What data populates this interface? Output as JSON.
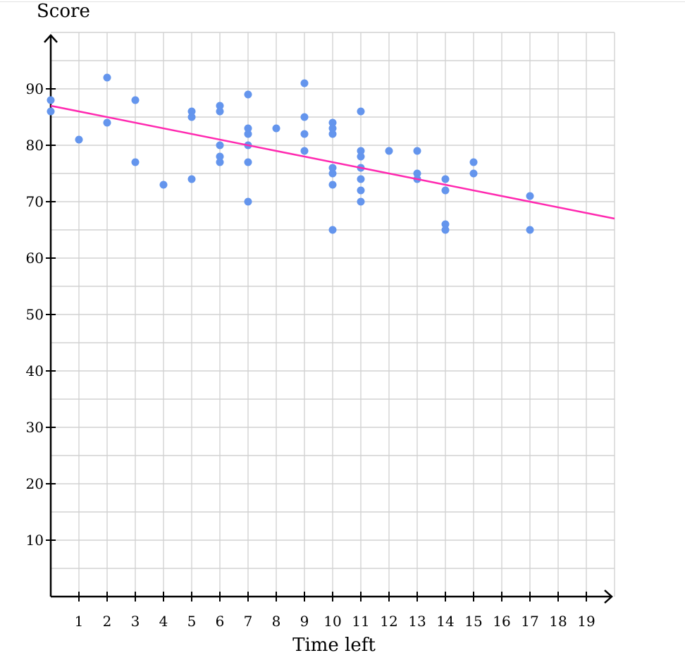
{
  "chart_data": {
    "type": "scatter",
    "title": "",
    "xlabel": "Time left",
    "ylabel": "Score",
    "xlim": [
      0,
      20
    ],
    "ylim": [
      0,
      100
    ],
    "x_ticks": [
      1,
      2,
      3,
      4,
      5,
      6,
      7,
      8,
      9,
      10,
      11,
      12,
      13,
      14,
      15,
      16,
      17,
      18,
      19
    ],
    "y_ticks": [
      10,
      20,
      30,
      40,
      50,
      60,
      70,
      80,
      90
    ],
    "grid": true,
    "point_color": "#6495ed",
    "line_color": "#ff29b0",
    "points": [
      [
        0,
        88
      ],
      [
        0,
        86
      ],
      [
        1,
        81
      ],
      [
        2,
        92
      ],
      [
        2,
        84
      ],
      [
        3,
        88
      ],
      [
        3,
        77
      ],
      [
        4,
        73
      ],
      [
        5,
        86
      ],
      [
        5,
        85
      ],
      [
        5,
        74
      ],
      [
        6,
        87
      ],
      [
        6,
        86
      ],
      [
        6,
        80
      ],
      [
        6,
        78
      ],
      [
        6,
        77
      ],
      [
        7,
        89
      ],
      [
        7,
        83
      ],
      [
        7,
        82
      ],
      [
        7,
        80
      ],
      [
        7,
        77
      ],
      [
        7,
        70
      ],
      [
        8,
        83
      ],
      [
        9,
        91
      ],
      [
        9,
        85
      ],
      [
        9,
        82
      ],
      [
        9,
        79
      ],
      [
        10,
        84
      ],
      [
        10,
        83
      ],
      [
        10,
        82
      ],
      [
        10,
        76
      ],
      [
        10,
        75
      ],
      [
        10,
        73
      ],
      [
        10,
        65
      ],
      [
        11,
        86
      ],
      [
        11,
        79
      ],
      [
        11,
        78
      ],
      [
        11,
        76
      ],
      [
        11,
        74
      ],
      [
        11,
        72
      ],
      [
        11,
        70
      ],
      [
        12,
        79
      ],
      [
        13,
        79
      ],
      [
        13,
        75
      ],
      [
        13,
        74
      ],
      [
        14,
        74
      ],
      [
        14,
        72
      ],
      [
        14,
        66
      ],
      [
        14,
        65
      ],
      [
        15,
        77
      ],
      [
        15,
        75
      ],
      [
        17,
        71
      ],
      [
        17,
        65
      ]
    ],
    "trend_line": {
      "x": [
        0,
        20
      ],
      "y": [
        87,
        67
      ]
    }
  }
}
